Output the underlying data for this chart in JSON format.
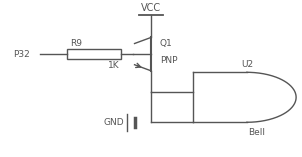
{
  "bg_color": "#ffffff",
  "line_color": "#555555",
  "text_color": "#555555",
  "label_P32": "P32",
  "label_R9": "R9",
  "label_1K": "1K",
  "label_Q1": "Q1",
  "label_PNP": "PNP",
  "label_VCC": "VCC",
  "label_GND": "GND",
  "label_U2": "U2",
  "label_Bell": "Bell",
  "figsize": [
    3.02,
    1.57
  ],
  "dpi": 100
}
